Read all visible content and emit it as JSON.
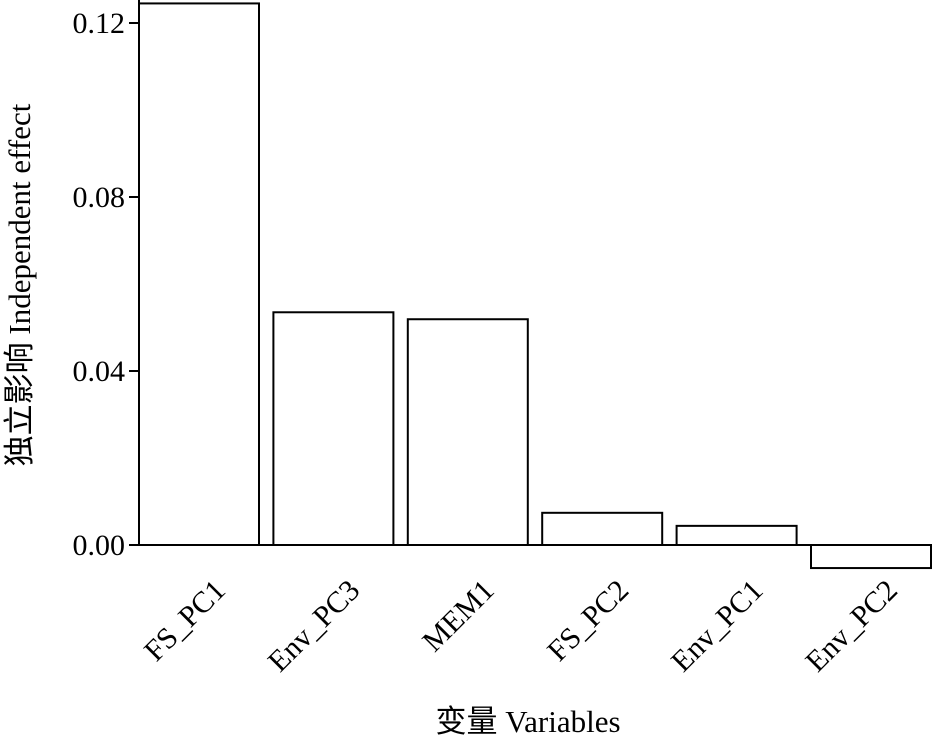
{
  "chart_data": {
    "type": "bar",
    "title": "",
    "xlabel": "变量  Variables",
    "ylabel": "独立影响 Independent effect",
    "categories": [
      "FS_PC1",
      "Env_PC3",
      "MEM1",
      "FS_PC2",
      "Env_PC1",
      "Env_PC2"
    ],
    "values": [
      0.1245,
      0.0535,
      0.0519,
      0.0074,
      0.0044,
      -0.0053
    ],
    "yticks": [
      "0.00",
      "0.04",
      "0.08",
      "0.12"
    ],
    "ylim": [
      -0.0065,
      0.126
    ],
    "grid": false,
    "bar_fill": "#ffffff",
    "bar_stroke": "#000000"
  }
}
